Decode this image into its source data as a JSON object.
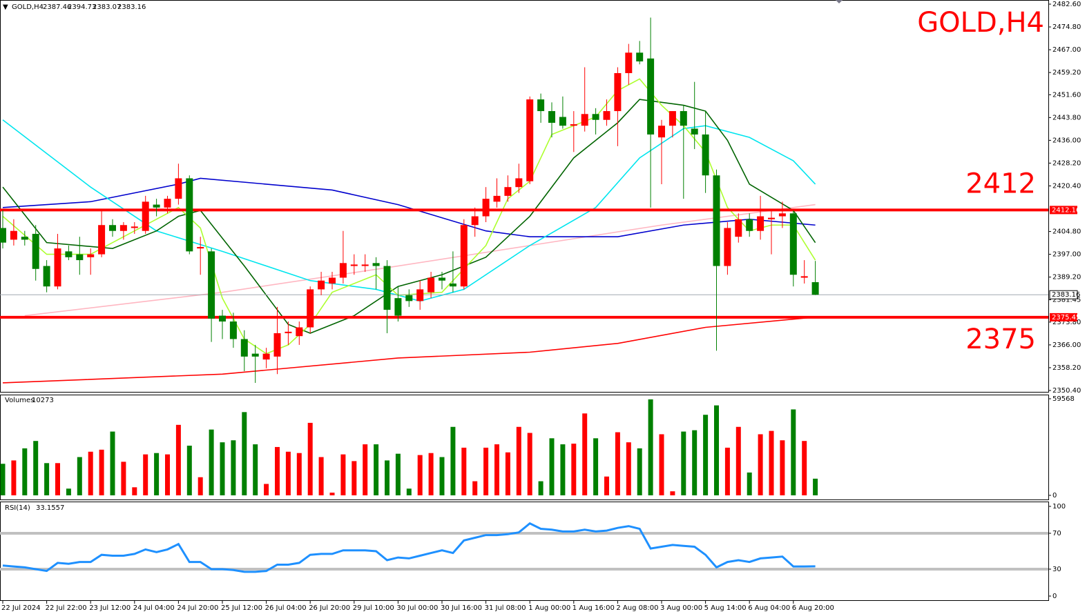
{
  "chart_data": {
    "type": "candlestick",
    "title": "GOLD,H4",
    "header_ohlc": [
      2387.46,
      2394.73,
      2383.07,
      2383.16
    ],
    "up_color": "#ff0000",
    "down_color": "#008000",
    "categories": [
      "22 Jul 2024",
      null,
      null,
      null,
      "22 Jul 22:00",
      null,
      null,
      null,
      "23 Jul 12:00",
      null,
      null,
      null,
      "24 Jul 04:00",
      null,
      null,
      null,
      "24 Jul 20:00",
      null,
      null,
      null,
      "25 Jul 12:00",
      null,
      null,
      null,
      "26 Jul 04:00",
      null,
      null,
      null,
      "26 Jul 20:00",
      null,
      null,
      null,
      "29 Jul 10:00",
      null,
      null,
      null,
      "30 Jul 00:00",
      null,
      null,
      null,
      "30 Jul 16:00",
      null,
      null,
      null,
      "31 Jul 08:00",
      null,
      null,
      null,
      "1 Aug 00:00",
      null,
      null,
      null,
      "1 Aug 16:00",
      null,
      null,
      null,
      "2 Aug 08:00",
      null,
      null,
      null,
      "3 Aug 00:00",
      null,
      null,
      null,
      "5 Aug 14:00",
      null,
      null,
      null,
      "6 Aug 04:00",
      null,
      null,
      null,
      "6 Aug 20:00",
      null,
      null
    ],
    "open": [
      2406,
      2402,
      2403,
      2404,
      2393,
      2386,
      2398,
      2397,
      2396,
      2397,
      2407,
      2405,
      2406,
      2405,
      2414,
      2413,
      2416,
      2423,
      2399,
      2398,
      2376,
      2374,
      2368,
      2363,
      2361,
      2362,
      2370,
      2369,
      2372,
      2385,
      2387,
      2389,
      2393,
      2393,
      2394,
      2393,
      2382,
      2383,
      2381,
      2384,
      2389,
      2387,
      2386,
      2407,
      2410,
      2415,
      2417,
      2420,
      2422,
      2450,
      2446,
      2444,
      2441,
      2441,
      2445,
      2443,
      2446,
      2459,
      2466,
      2464,
      2437,
      2441,
      2446,
      2440,
      2438,
      2424,
      2393,
      2403,
      2409,
      2405,
      2409,
      2410,
      2411,
      2389,
      2387.46
    ],
    "high": [
      2412,
      2409,
      2405,
      2407,
      2395,
      2404,
      2400,
      2403,
      2399,
      2412,
      2409,
      2408,
      2408,
      2417,
      2416,
      2417,
      2428,
      2424,
      2403,
      2399,
      2378,
      2377,
      2371,
      2366,
      2365,
      2379,
      2374,
      2374,
      2386,
      2391,
      2391,
      2405,
      2397,
      2397,
      2396,
      2395,
      2386,
      2385,
      2388,
      2391,
      2391,
      2398,
      2409,
      2413,
      2420,
      2423,
      2424,
      2428,
      2451,
      2452,
      2449,
      2451,
      2446,
      2461,
      2447,
      2450,
      2461,
      2469,
      2470,
      2478,
      2443,
      2446,
      2448,
      2456,
      2446,
      2426,
      2408,
      2411,
      2411,
      2417,
      2412,
      2415,
      2412,
      2395,
      2394.73
    ],
    "low": [
      2399,
      2400,
      2400,
      2388,
      2384,
      2385,
      2395,
      2390,
      2390,
      2396,
      2403,
      2402,
      2404,
      2404,
      2410,
      2411,
      2414,
      2397,
      2390,
      2367,
      2368,
      2365,
      2357,
      2353,
      2358,
      2356,
      2366,
      2366,
      2370,
      2383,
      2385,
      2387,
      2390,
      2391,
      2385,
      2370,
      2374,
      2379,
      2378,
      2382,
      2385,
      2384,
      2385,
      2403,
      2408,
      2413,
      2415,
      2418,
      2421,
      2442,
      2437,
      2440,
      2432,
      2439,
      2438,
      2441,
      2434,
      2455,
      2462,
      2413,
      2421,
      2437,
      2416,
      2433,
      2418,
      2364,
      2390,
      2401,
      2403,
      2402,
      2397,
      2406,
      2386,
      2387,
      2383.07
    ],
    "close": [
      2401,
      2405,
      2402,
      2392,
      2386,
      2399,
      2396,
      2395,
      2397,
      2407,
      2405,
      2407,
      2406.5,
      2415,
      2413,
      2416,
      2423,
      2398,
      2399.5,
      2375,
      2374,
      2368,
      2362,
      2362,
      2363,
      2370,
      2370.5,
      2372,
      2385,
      2388,
      2389,
      2394,
      2393.5,
      2393.5,
      2393,
      2378,
      2376,
      2381,
      2385,
      2389,
      2388,
      2386,
      2407,
      2410,
      2416,
      2417,
      2420,
      2423,
      2450,
      2446,
      2442,
      2441,
      2441.5,
      2445,
      2443,
      2446,
      2459,
      2466,
      2463,
      2438,
      2441,
      2446,
      2441,
      2438,
      2424,
      2393,
      2406,
      2409,
      2405,
      2410,
      2409.5,
      2411,
      2390,
      2389.5,
      2383.16
    ],
    "ylim": [
      2350.4,
      2482.6
    ],
    "yticks": [
      {
        "value": 2482.6,
        "label": "2482.60"
      },
      {
        "value": 2474.8,
        "label": "2474.80"
      },
      {
        "value": 2467,
        "label": "2467.00"
      },
      {
        "value": 2459.2,
        "label": "2459.20"
      },
      {
        "value": 2451.6,
        "label": "2451.60"
      },
      {
        "value": 2443.8,
        "label": "2443.80"
      },
      {
        "value": 2436,
        "label": "2436.00"
      },
      {
        "value": 2428.2,
        "label": "2428.20"
      },
      {
        "value": 2420.4,
        "label": "2420.40"
      },
      {
        "value": 2404.8,
        "label": "2404.80"
      },
      {
        "value": 2397,
        "label": "2397.00"
      },
      {
        "value": 2389.2,
        "label": "2389.20"
      },
      {
        "value": 2381.45,
        "label": "2381.45"
      },
      {
        "value": 2373.8,
        "label": "2373.80"
      },
      {
        "value": 2366,
        "label": "2366.00"
      },
      {
        "value": 2358.2,
        "label": "2358.20"
      },
      {
        "value": 2350.4,
        "label": "2350.40"
      }
    ],
    "current_price": 2383.16,
    "levels": [
      {
        "value": 2412.16,
        "annotation": "2412",
        "color": "#ff0000"
      },
      {
        "value": 2375.45,
        "annotation": "2375",
        "color": "#ff0000"
      }
    ],
    "moving_averages": [
      {
        "color": "#ff0000",
        "x": [
          0,
          20,
          36,
          48,
          56,
          64,
          74
        ],
        "values": [
          2353,
          2356,
          2361.5,
          2363.5,
          2366.5,
          2372,
          2375.5
        ]
      },
      {
        "color": "#ffb6c1",
        "x": [
          2,
          20,
          36,
          48,
          60,
          74
        ],
        "values": [
          2376,
          2384,
          2393,
          2400,
          2407,
          2414
        ]
      },
      {
        "color": "#0000cd",
        "x": [
          0,
          8,
          16,
          18,
          30,
          36,
          44,
          48,
          56,
          62,
          68,
          74
        ],
        "values": [
          2413,
          2415,
          2421,
          2423,
          2419,
          2414,
          2405,
          2403,
          2403,
          2407,
          2409,
          2407
        ]
      },
      {
        "color": "#00e5ee",
        "x": [
          0,
          8,
          14,
          20,
          28,
          34,
          38,
          42,
          48,
          54,
          58,
          62,
          64,
          68,
          72,
          74
        ],
        "values": [
          2443,
          2420,
          2405,
          2398,
          2388,
          2385,
          2381,
          2385,
          2400,
          2413,
          2430,
          2440,
          2441,
          2437,
          2429,
          2421
        ]
      },
      {
        "color": "#006400",
        "x": [
          0,
          4,
          10,
          14,
          16,
          18,
          22,
          26,
          28,
          32,
          36,
          40,
          44,
          48,
          52,
          56,
          58,
          62,
          64,
          66,
          68,
          72,
          74
        ],
        "values": [
          2420,
          2401,
          2399,
          2405,
          2410,
          2412,
          2393,
          2373,
          2370,
          2376,
          2386,
          2390,
          2396,
          2410,
          2430,
          2442,
          2450,
          2448,
          2446,
          2436,
          2421,
          2412,
          2401
        ]
      },
      {
        "color": "#adff2f",
        "x": [
          0,
          4,
          8,
          12,
          16,
          18,
          20,
          22,
          24,
          26,
          28,
          30,
          34,
          36,
          40,
          44,
          46,
          48,
          50,
          54,
          56,
          58,
          60,
          62,
          64,
          66,
          68,
          70,
          72,
          74
        ],
        "values": [
          2410,
          2397,
          2397,
          2405,
          2413,
          2406,
          2382,
          2368,
          2363,
          2366,
          2373,
          2384,
          2390,
          2383,
          2384,
          2400,
          2416,
          2422,
          2438,
          2444,
          2453,
          2457,
          2448,
          2441,
          2432,
          2413,
          2405,
          2407,
          2407,
          2395
        ]
      }
    ],
    "volume_label": "Volumes",
    "volumes": [
      19458,
      21528,
      28980,
      33534,
      19872,
      19872,
      4140,
      23598,
      26910,
      28152,
      39330,
      20700,
      4968,
      25254,
      26082,
      25254,
      43470,
      30636,
      11178,
      40572,
      32706,
      33948,
      51336,
      31464,
      7038,
      29808,
      26910,
      26082,
      44712,
      23598,
      1656,
      25254,
      21114,
      31464,
      31464,
      21528,
      25668,
      4140,
      24840,
      26082,
      23598,
      42228,
      29394,
      8694,
      29394,
      31464,
      26496,
      42228,
      38502,
      8694,
      35190,
      31464,
      31878,
      50508,
      35190,
      11592,
      38916,
      32706,
      28980,
      59202,
      37674,
      2484,
      39330,
      40158,
      49680,
      55476,
      29394,
      42228,
      14076,
      37674,
      39744,
      33948,
      52992,
      33534,
      10273
    ],
    "volume_ylim": [
      0,
      59568
    ],
    "volume_yticks": [
      59568,
      0
    ],
    "rsi_label": "RSI(14)",
    "rsi": [
      34,
      33,
      32,
      30,
      28,
      37,
      36,
      38,
      38,
      46,
      45,
      45,
      47,
      52,
      49,
      52,
      58,
      38,
      38,
      30,
      30,
      29,
      27,
      27,
      28,
      35,
      35,
      37,
      46,
      47,
      47,
      51,
      51,
      51,
      50,
      40,
      43,
      42,
      45,
      48,
      51,
      48,
      62,
      65,
      68,
      68,
      69,
      71,
      81,
      75,
      74,
      72,
      72,
      74,
      72,
      73,
      76,
      78,
      75,
      53,
      55,
      57,
      56,
      55,
      46,
      32,
      38,
      40,
      38,
      42,
      43,
      44,
      33,
      33,
      33.1557
    ],
    "rsi_color": "#1e90ff",
    "rsi_ylim": [
      0,
      100
    ],
    "rsi_yticks": [
      100,
      70,
      30,
      0
    ],
    "rsi_levels": [
      70,
      30
    ]
  }
}
